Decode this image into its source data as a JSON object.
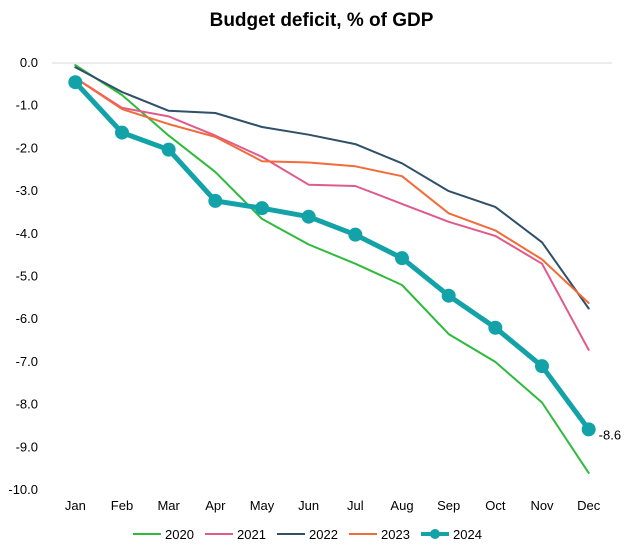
{
  "chart_data": {
    "type": "line",
    "title": "Budget deficit, % of GDP",
    "xlabel": "",
    "ylabel": "",
    "categories": [
      "Jan",
      "Feb",
      "Mar",
      "Apr",
      "May",
      "Jun",
      "Jul",
      "Aug",
      "Sep",
      "Oct",
      "Nov",
      "Dec"
    ],
    "ylim": [
      -10.0,
      0.0
    ],
    "yticks": [
      0.0,
      -1.0,
      -2.0,
      -3.0,
      -4.0,
      -5.0,
      -6.0,
      -7.0,
      -8.0,
      -9.0,
      -10.0
    ],
    "ytick_labels": [
      "0.0",
      "-1.0",
      "-2.0",
      "-3.0",
      "-4.0",
      "-5.0",
      "-6.0",
      "-7.0",
      "-8.0",
      "-9.0",
      "-10.0"
    ],
    "grid": false,
    "legend_position": "bottom",
    "series": [
      {
        "name": "2020",
        "color": "#2dbb3c",
        "highlight": false,
        "values": [
          -0.05,
          -0.75,
          -1.7,
          -2.55,
          -3.65,
          -4.25,
          -4.7,
          -5.2,
          -6.35,
          -7.0,
          -7.95,
          -9.6
        ]
      },
      {
        "name": "2021",
        "color": "#e05a8c",
        "highlight": false,
        "values": [
          -0.35,
          -1.05,
          -1.25,
          -1.7,
          -2.2,
          -2.85,
          -2.88,
          -3.3,
          -3.72,
          -4.05,
          -4.7,
          -6.72
        ]
      },
      {
        "name": "2022",
        "color": "#2e5068",
        "highlight": false,
        "values": [
          -0.1,
          -0.68,
          -1.12,
          -1.17,
          -1.5,
          -1.68,
          -1.9,
          -2.35,
          -3.0,
          -3.37,
          -4.2,
          -5.75
        ]
      },
      {
        "name": "2023",
        "color": "#f26b3a",
        "highlight": false,
        "values": [
          -0.35,
          -1.08,
          -1.43,
          -1.73,
          -2.3,
          -2.33,
          -2.42,
          -2.65,
          -3.52,
          -3.92,
          -4.6,
          -5.62
        ]
      },
      {
        "name": "2024",
        "color": "#12a2a8",
        "highlight": true,
        "values": [
          -0.45,
          -1.63,
          -2.03,
          -3.23,
          -3.4,
          -3.6,
          -4.02,
          -4.57,
          -5.45,
          -6.2,
          -7.1,
          -8.58
        ],
        "end_label": "-8.6"
      }
    ]
  }
}
